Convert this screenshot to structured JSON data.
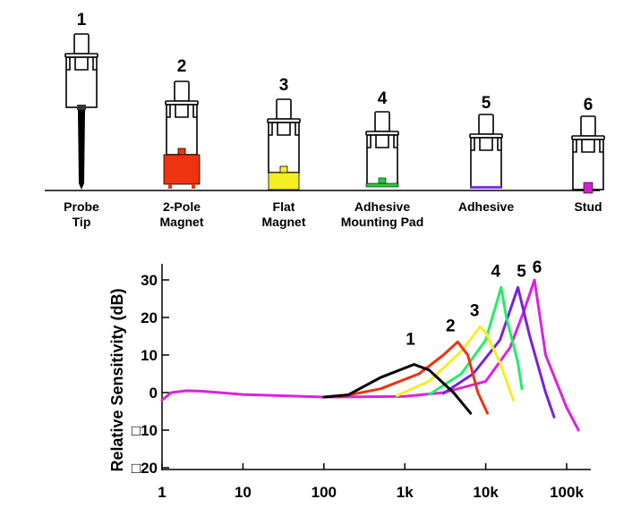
{
  "mounts": [
    {
      "number": "1",
      "label_lines": [
        "Probe",
        "Tip"
      ],
      "attachment": "probe-tip",
      "color": "#000000"
    },
    {
      "number": "2",
      "label_lines": [
        "2-Pole",
        "Magnet"
      ],
      "attachment": "two-pole-magnet",
      "color": "#ee3311"
    },
    {
      "number": "3",
      "label_lines": [
        "Flat",
        "Magnet"
      ],
      "attachment": "flat-magnet",
      "color": "#f5ee22"
    },
    {
      "number": "4",
      "label_lines": [
        "Adhesive",
        "Mounting Pad"
      ],
      "attachment": "adhesive-mounting-pad",
      "color": "#22cc44"
    },
    {
      "number": "5",
      "label_lines": [
        "Adhesive"
      ],
      "attachment": "adhesive",
      "color": "#8833dd"
    },
    {
      "number": "6",
      "label_lines": [
        "Stud"
      ],
      "attachment": "stud",
      "color": "#cc22cc"
    }
  ],
  "chart_data": {
    "type": "line",
    "title": "",
    "xlabel": "",
    "ylabel": "Relative Sensitivity (dB)",
    "xscale": "log",
    "xlim": [
      1,
      150000
    ],
    "ylim": [
      -20,
      33
    ],
    "xticks": [
      {
        "value": 1,
        "label": "1"
      },
      {
        "value": 10,
        "label": "10"
      },
      {
        "value": 100,
        "label": "100"
      },
      {
        "value": 1000,
        "label": "1k"
      },
      {
        "value": 10000,
        "label": "10k"
      },
      {
        "value": 100000,
        "label": "100k"
      }
    ],
    "yticks": [
      {
        "value": 30,
        "label": "30"
      },
      {
        "value": 20,
        "label": "20"
      },
      {
        "value": 10,
        "label": "10"
      },
      {
        "value": 0,
        "label": "0"
      },
      {
        "value": -10,
        "label": "□10"
      },
      {
        "value": -20,
        "label": "□20"
      }
    ],
    "grid": false,
    "series": [
      {
        "name": "1",
        "color": "#000000",
        "points": [
          [
            100,
            -1.2
          ],
          [
            200,
            -0.6
          ],
          [
            500,
            4
          ],
          [
            1300,
            7.5
          ],
          [
            2000,
            6
          ],
          [
            4000,
            0
          ],
          [
            6500,
            -5.5
          ]
        ]
      },
      {
        "name": "2",
        "color": "#ee3311",
        "points": [
          [
            150,
            -1.2
          ],
          [
            500,
            1
          ],
          [
            1500,
            5
          ],
          [
            3000,
            10
          ],
          [
            4500,
            13.5
          ],
          [
            6000,
            10
          ],
          [
            8000,
            0
          ],
          [
            10500,
            -5.5
          ]
        ]
      },
      {
        "name": "3",
        "color": "#f5ee22",
        "points": [
          [
            800,
            -0.8
          ],
          [
            2000,
            3
          ],
          [
            5000,
            11
          ],
          [
            8500,
            17.5
          ],
          [
            10000,
            16
          ],
          [
            15000,
            8
          ],
          [
            22000,
            -2
          ]
        ]
      },
      {
        "name": "4",
        "color": "#22ee66",
        "points": [
          [
            2000,
            -0.5
          ],
          [
            5000,
            5
          ],
          [
            10000,
            14
          ],
          [
            15500,
            28
          ],
          [
            18000,
            20
          ],
          [
            25000,
            8
          ],
          [
            28000,
            1
          ]
        ]
      },
      {
        "name": "5",
        "color": "#7722dd",
        "points": [
          [
            3000,
            -0.2
          ],
          [
            7000,
            5
          ],
          [
            15000,
            14
          ],
          [
            25000,
            28
          ],
          [
            35000,
            15
          ],
          [
            55000,
            0
          ],
          [
            70000,
            -6.5
          ]
        ]
      },
      {
        "name": "6",
        "color": "#dd22dd",
        "points": [
          [
            1,
            -2
          ],
          [
            1.3,
            0
          ],
          [
            2,
            0.5
          ],
          [
            3,
            0.4
          ],
          [
            10,
            -0.5
          ],
          [
            100,
            -1.2
          ],
          [
            1000,
            -1
          ],
          [
            3000,
            0
          ],
          [
            10000,
            3
          ],
          [
            20000,
            12
          ],
          [
            30000,
            22
          ],
          [
            40000,
            30
          ],
          [
            55000,
            10
          ],
          [
            100000,
            -4
          ],
          [
            140000,
            -10
          ]
        ]
      }
    ]
  }
}
